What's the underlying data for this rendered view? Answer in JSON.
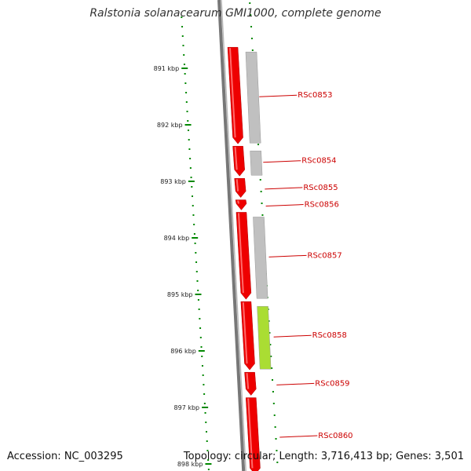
{
  "title": "Ralstonia solanacearum GMI1000, complete genome",
  "footer": {
    "accession": "Accession: NC_003295",
    "summary": "Topology: circular; Length: 3,716,413 bp; Genes: 3,501"
  },
  "scale": {
    "ticks": [
      "891 kbp",
      "892 kbp",
      "893 kbp",
      "894 kbp",
      "895 kbp",
      "896 kbp",
      "897 kbp",
      "898 kbp"
    ]
  },
  "genes": [
    {
      "label": "RSc0853",
      "start_kbp": 890.6,
      "end_kbp": 892.35,
      "cds_color": "#c0c0c0"
    },
    {
      "label": "RSc0854",
      "start_kbp": 892.35,
      "end_kbp": 892.92,
      "cds_color": "#c0c0c0"
    },
    {
      "label": "RSc0855",
      "start_kbp": 892.92,
      "end_kbp": 893.3,
      "cds_color": null
    },
    {
      "label": "RSc0856",
      "start_kbp": 893.3,
      "end_kbp": 893.52,
      "cds_color": null
    },
    {
      "label": "RSc0857",
      "start_kbp": 893.52,
      "end_kbp": 895.1,
      "cds_color": "#c0c0c0"
    },
    {
      "label": "RSc0858",
      "start_kbp": 895.1,
      "end_kbp": 896.35,
      "cds_color": "#aadd33"
    },
    {
      "label": "RSc0859",
      "start_kbp": 896.35,
      "end_kbp": 896.8,
      "cds_color": null
    },
    {
      "label": "RSc0860",
      "start_kbp": 896.8,
      "end_kbp": 898.2,
      "cds_color": null
    }
  ],
  "colors": {
    "gene": "#ee0000",
    "backbone": "#777777",
    "tick": "#008800",
    "label": "#cc0000"
  }
}
